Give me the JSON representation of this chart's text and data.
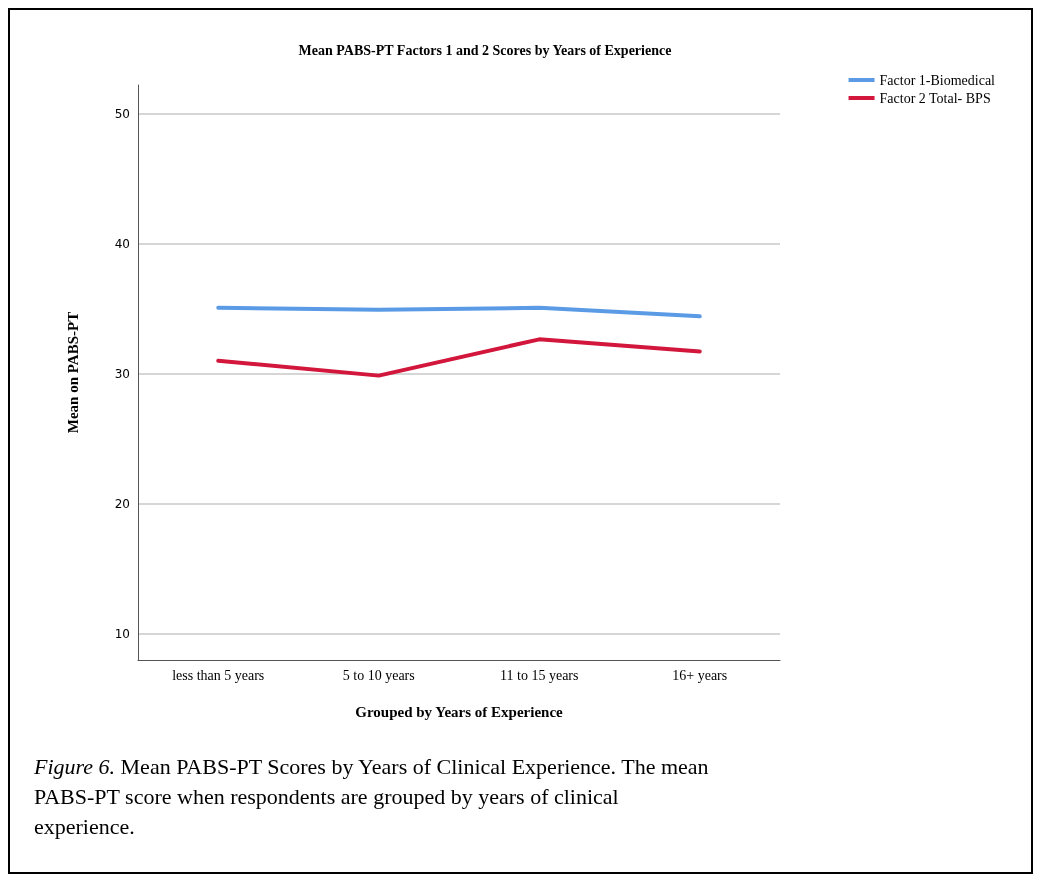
{
  "chart_data": {
    "type": "line",
    "title": "Mean PABS-PT Factors 1 and 2 Scores by Years of Experience",
    "xlabel": "Grouped by Years of Experience",
    "ylabel": "Mean on PABS-PT",
    "categories": [
      "less than 5 years",
      "5 to 10 years",
      "11 to 15 years",
      "16+ years"
    ],
    "series": [
      {
        "name": "Factor 1-Biomedical",
        "color": "#5b9be6",
        "values": [
          35.07,
          34.93,
          35.07,
          34.42
        ]
      },
      {
        "name": "Factor 2 Total- BPS",
        "color": "#d2163c",
        "values": [
          31.0,
          29.86,
          32.65,
          31.72
        ]
      }
    ],
    "ylim": [
      8,
      52.2
    ],
    "yticks": [
      10,
      20,
      30,
      40,
      50
    ],
    "grid": "y",
    "legend": "top right",
    "marker": "none",
    "line_style": "solid",
    "annotations": [
      "Figure 6.",
      "Mean PABS-PT Scores by Years of Clinical Experience. The mean PABS-PT score when respondents are grouped by years of clinical experience."
    ]
  }
}
